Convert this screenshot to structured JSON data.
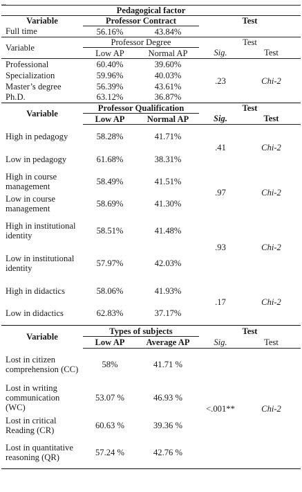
{
  "top_fragment": "...",
  "pedagogical": {
    "header": "Pedagogical factor",
    "variable_label": "Variable",
    "contract_label": "Professor Contract",
    "test_label": "Test",
    "full_time": {
      "label": "Full time",
      "low": "56.16%",
      "normal": "43.84%"
    }
  },
  "degree": {
    "variable_label": "Variable",
    "group_label": "Professor Degree",
    "test_label": "Test",
    "col_low": "Low AP",
    "col_normal": "Normal AP",
    "col_sig": "Sig.",
    "col_test": "Test",
    "rows": [
      {
        "label": "Professional",
        "low": "60.40%",
        "normal": "39.60%"
      },
      {
        "label": "Specialization",
        "low": "59.96%",
        "normal": "40.03%"
      },
      {
        "label": "Master’s degree",
        "low": "56.39%",
        "normal": "43.61%"
      },
      {
        "label": "Ph.D.",
        "low": "63.12%",
        "normal": "36.87%"
      }
    ],
    "sig": ".23",
    "test": "Chi-2"
  },
  "qualification": {
    "variable_label": "Variable",
    "group_label": "Professor Qualification",
    "test_label": "Test",
    "col_low": "Low AP",
    "col_normal": "Normal AP",
    "col_sig": "Sig.",
    "col_test": "Test",
    "rows": [
      {
        "label": "High in pedagogy",
        "low": "58.28%",
        "normal": "41.71%"
      },
      {
        "label": "Low in pedagogy",
        "low": "61.68%",
        "normal": "38.31%"
      },
      {
        "label": "High in course management",
        "low": "58.49%",
        "normal": "41.51%"
      },
      {
        "label": "Low in course management",
        "low": "58.69%",
        "normal": "41.30%"
      },
      {
        "label": "High in institutional identity",
        "low": "58.51%",
        "normal": "41.48%"
      },
      {
        "label": "Low in institutional identity",
        "low": "57.97%",
        "normal": "42.03%"
      },
      {
        "label": "High in didactics",
        "low": "58.06%",
        "normal": "41.93%"
      },
      {
        "label": "Low in didactics",
        "low": "62.83%",
        "normal": "37.17%"
      }
    ],
    "groups": [
      {
        "sig": ".41",
        "test": "Chi-2"
      },
      {
        "sig": ".97",
        "test": "Chi-2"
      },
      {
        "sig": ".93",
        "test": "Chi-2"
      },
      {
        "sig": ".17",
        "test": "Chi-2"
      }
    ]
  },
  "subjects": {
    "variable_label": "Variable",
    "group_label": "Types of subjects",
    "test_label": "Test",
    "col_low": "Low AP",
    "col_avg": "Average AP",
    "col_sig": "Sig.",
    "col_test": "Test",
    "rows": [
      {
        "label": "Lost in citizen comprehension (CC)",
        "low": "58%",
        "avg": "41.71 %"
      },
      {
        "label": "Lost in writing communication (WC)",
        "low": "53.07 %",
        "avg": "46.93 %"
      },
      {
        "label": "Lost in critical Reading (CR)",
        "low": "60.63 %",
        "avg": "39.36 %"
      },
      {
        "label": "Lost in quantitative reasoning (QR)",
        "low": "57.24 %",
        "avg": "42.76 %"
      }
    ],
    "sig": "<.001**",
    "test": "Chi-2"
  }
}
